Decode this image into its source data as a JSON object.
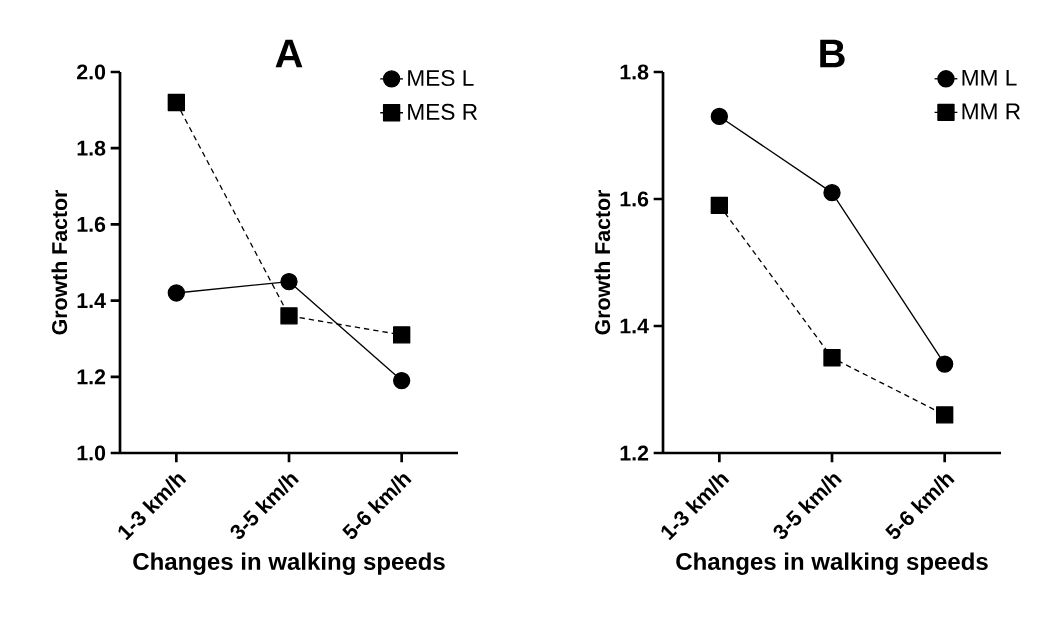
{
  "chart_data": [
    {
      "type": "line",
      "title": "A",
      "xlabel": "Changes in walking speeds",
      "ylabel": "Growth Factor",
      "categories": [
        "1-3 km/h",
        "3-5 km/h",
        "5-6 km/h"
      ],
      "ylim": [
        1.0,
        2.0
      ],
      "yticks": [
        {
          "value": 1.0,
          "label": "1.0"
        },
        {
          "value": 1.2,
          "label": "1.2"
        },
        {
          "value": 1.4,
          "label": "1.4"
        },
        {
          "value": 1.6,
          "label": "1.6"
        },
        {
          "value": 1.8,
          "label": "1.8"
        },
        {
          "value": 2.0,
          "label": "2.0"
        }
      ],
      "legend": "top right",
      "series": [
        {
          "name": "MES L",
          "color": "#000000",
          "marker": "circle",
          "line_style": "solid",
          "values": [
            1.42,
            1.45,
            1.19
          ]
        },
        {
          "name": "MES R",
          "color": "#000000",
          "marker": "square",
          "line_style": "dashed",
          "values": [
            1.92,
            1.36,
            1.31
          ]
        }
      ]
    },
    {
      "type": "line",
      "title": "B",
      "xlabel": "Changes in walking speeds",
      "ylabel": "Growth Factor",
      "categories": [
        "1-3 km/h",
        "3-5 km/h",
        "5-6 km/h"
      ],
      "ylim": [
        1.2,
        1.8
      ],
      "yticks": [
        {
          "value": 1.2,
          "label": "1.2"
        },
        {
          "value": 1.4,
          "label": "1.4"
        },
        {
          "value": 1.6,
          "label": "1.6"
        },
        {
          "value": 1.8,
          "label": "1.8"
        }
      ],
      "legend": "top right",
      "series": [
        {
          "name": "MM L",
          "color": "#000000",
          "marker": "circle",
          "line_style": "solid",
          "values": [
            1.73,
            1.61,
            1.34
          ]
        },
        {
          "name": "MM R",
          "color": "#000000",
          "marker": "square",
          "line_style": "dashed",
          "values": [
            1.59,
            1.35,
            1.26
          ]
        }
      ]
    }
  ]
}
